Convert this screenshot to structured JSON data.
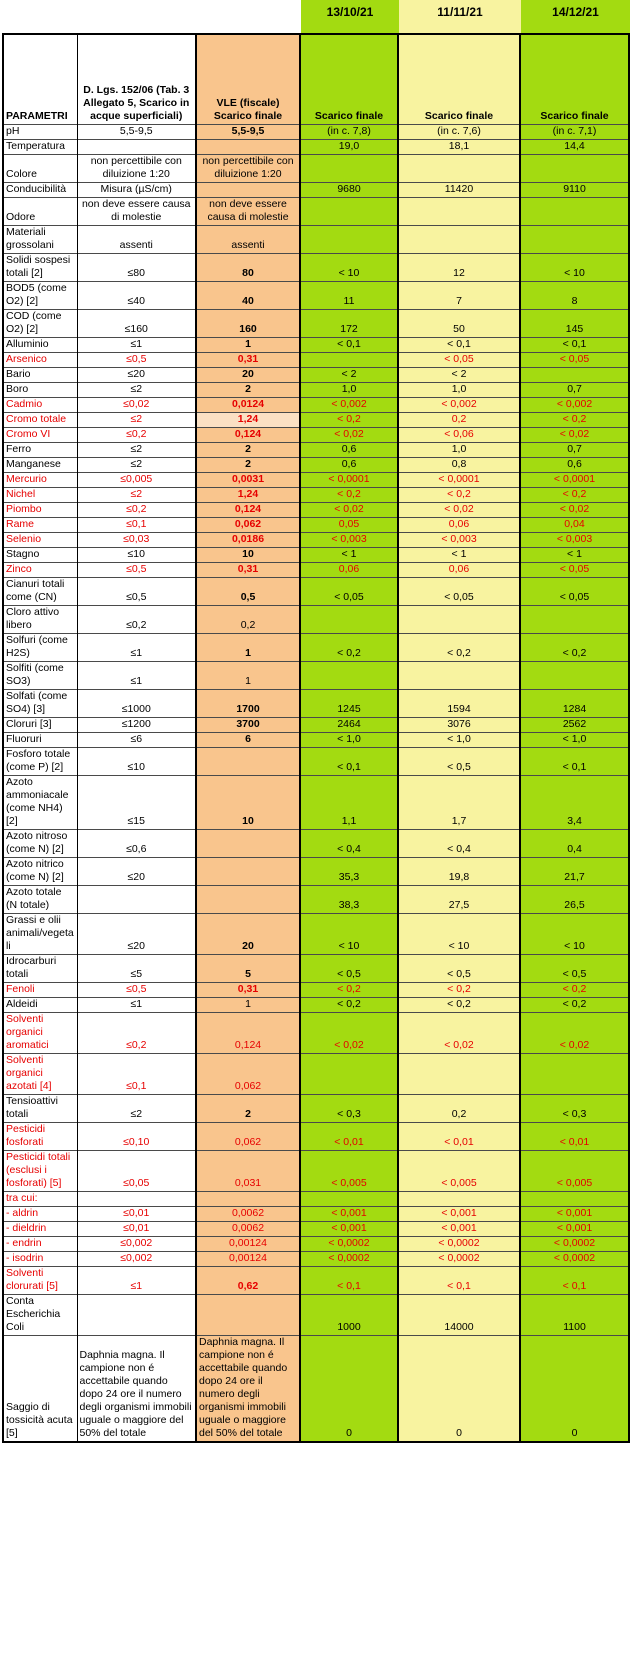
{
  "dates": [
    "13/10/21",
    "11/11/21",
    "14/12/21"
  ],
  "header": {
    "col_param": "PARAMETRI",
    "col_limit": "D. Lgs. 152/06 (Tab. 3 Allegato 5, Scarico in acque superficiali)",
    "col_vle": "VLE (fiscale) Scarico finale",
    "col_sample": "Scarico finale"
  },
  "colors": {
    "green": "#a3db11",
    "yellow": "#f8f3a0",
    "orange": "#f9c58d",
    "orange_light": "#fbe0c3",
    "red": "#e60000"
  },
  "rows": [
    {
      "name": "pH",
      "limit": "5,5-9,5",
      "vle": "5,5-9,5",
      "bold": true,
      "red": false,
      "values": [
        "(in c. 7,8)",
        "(in c. 7,6)",
        "(in c. 7,1)"
      ]
    },
    {
      "name": "Temperatura",
      "limit": "",
      "vle": "",
      "bold": false,
      "red": false,
      "values": [
        "19,0",
        "18,1",
        "14,4"
      ]
    },
    {
      "name": "Colore",
      "limit": "non percettibile con diluizione 1:20",
      "vle": "non percettibile con diluizione 1:20",
      "bold": false,
      "red": false,
      "values": [
        "",
        "",
        ""
      ]
    },
    {
      "name": "Conducibilità",
      "limit": "Misura (µS/cm)",
      "vle": "",
      "bold": false,
      "red": false,
      "values": [
        "9680",
        "11420",
        "9110"
      ]
    },
    {
      "name": "Odore",
      "limit": "non deve essere causa di molestie",
      "vle": "non deve essere causa di molestie",
      "bold": false,
      "red": false,
      "values": [
        "",
        "",
        ""
      ]
    },
    {
      "name": "Materiali grossolani",
      "limit": "assenti",
      "vle": "assenti",
      "bold": false,
      "red": false,
      "values": [
        "",
        "",
        ""
      ]
    },
    {
      "name": "Solidi sospesi totali [2]",
      "limit": "≤80",
      "vle": "80",
      "bold": true,
      "red": false,
      "values": [
        "< 10",
        "12",
        "< 10"
      ]
    },
    {
      "name": "BOD5 (come O2) [2]",
      "limit": "≤40",
      "vle": "40",
      "bold": true,
      "red": false,
      "values": [
        "11",
        "7",
        "8"
      ]
    },
    {
      "name": "COD (come O2) [2]",
      "limit": "≤160",
      "vle": "160",
      "bold": true,
      "red": false,
      "values": [
        "172",
        "50",
        "145"
      ]
    },
    {
      "name": "Alluminio",
      "limit": "≤1",
      "vle": "1",
      "bold": true,
      "red": false,
      "values": [
        "< 0,1",
        "< 0,1",
        "< 0,1"
      ]
    },
    {
      "name": "Arsenico",
      "limit": "≤0,5",
      "vle": "0,31",
      "bold": true,
      "red": true,
      "values": [
        "",
        "< 0,05",
        "< 0,05"
      ]
    },
    {
      "name": "Bario",
      "limit": "≤20",
      "vle": "20",
      "bold": true,
      "red": false,
      "values": [
        "< 2",
        "< 2",
        ""
      ]
    },
    {
      "name": "Boro",
      "limit": "≤2",
      "vle": "2",
      "bold": true,
      "red": false,
      "values": [
        "1,0",
        "1,0",
        "0,7"
      ]
    },
    {
      "name": "Cadmio",
      "limit": "≤0,02",
      "vle": "0,0124",
      "bold": true,
      "red": true,
      "values": [
        "< 0,002",
        "< 0,002",
        "< 0,002"
      ]
    },
    {
      "name": "Cromo totale",
      "limit": "≤2",
      "vle": "1,24",
      "bold": true,
      "light": true,
      "red": true,
      "values": [
        "< 0,2",
        "0,2",
        "< 0,2"
      ]
    },
    {
      "name": "Cromo VI",
      "limit": "≤0,2",
      "vle": "0,124",
      "bold": true,
      "red": true,
      "values": [
        "< 0,02",
        "< 0,06",
        "< 0,02"
      ]
    },
    {
      "name": "Ferro",
      "limit": "≤2",
      "vle": "2",
      "bold": true,
      "red": false,
      "values": [
        "0,6",
        "1,0",
        "0,7"
      ]
    },
    {
      "name": "Manganese",
      "limit": "≤2",
      "vle": "2",
      "bold": true,
      "red": false,
      "values": [
        "0,6",
        "0,8",
        "0,6"
      ]
    },
    {
      "name": "Mercurio",
      "limit": "≤0,005",
      "vle": "0,0031",
      "bold": true,
      "red": true,
      "values": [
        "< 0,0001",
        "< 0,0001",
        "< 0,0001"
      ]
    },
    {
      "name": "Nichel",
      "limit": "≤2",
      "vle": "1,24",
      "bold": true,
      "red": true,
      "values": [
        "< 0,2",
        "< 0,2",
        "< 0,2"
      ]
    },
    {
      "name": "Piombo",
      "limit": "≤0,2",
      "vle": "0,124",
      "bold": true,
      "red": true,
      "values": [
        "< 0,02",
        "< 0,02",
        "< 0,02"
      ]
    },
    {
      "name": "Rame",
      "limit": "≤0,1",
      "vle": "0,062",
      "bold": true,
      "red": true,
      "values": [
        "0,05",
        "0,06",
        "0,04"
      ]
    },
    {
      "name": "Selenio",
      "limit": "≤0,03",
      "vle": "0,0186",
      "bold": true,
      "red": true,
      "values": [
        "< 0,003",
        "< 0,003",
        "< 0,003"
      ]
    },
    {
      "name": "Stagno",
      "limit": "≤10",
      "vle": "10",
      "bold": true,
      "red": false,
      "values": [
        "< 1",
        "< 1",
        "< 1"
      ]
    },
    {
      "name": "Zinco",
      "limit": "≤0,5",
      "vle": "0,31",
      "bold": true,
      "red": true,
      "values": [
        "0,06",
        "0,06",
        "< 0,05"
      ]
    },
    {
      "name": "Cianuri totali come (CN)",
      "limit": "≤0,5",
      "vle": "0,5",
      "bold": true,
      "red": false,
      "values": [
        "< 0,05",
        "< 0,05",
        "< 0,05"
      ]
    },
    {
      "name": "Cloro attivo libero",
      "limit": "≤0,2",
      "vle": "0,2",
      "bold": false,
      "red": false,
      "values": [
        "",
        "",
        ""
      ]
    },
    {
      "name": "Solfuri (come H2S)",
      "limit": "≤1",
      "vle": "1",
      "bold": true,
      "red": false,
      "values": [
        "< 0,2",
        "< 0,2",
        "< 0,2"
      ]
    },
    {
      "name": "Solfiti (come SO3)",
      "limit": "≤1",
      "vle": "1",
      "bold": false,
      "red": false,
      "values": [
        "",
        "",
        ""
      ]
    },
    {
      "name": "Solfati (come SO4) [3]",
      "limit": "≤1000",
      "vle": "1700",
      "bold": true,
      "red": false,
      "values": [
        "1245",
        "1594",
        "1284"
      ]
    },
    {
      "name": "Cloruri [3]",
      "limit": "≤1200",
      "vle": "3700",
      "bold": true,
      "red": false,
      "values": [
        "2464",
        "3076",
        "2562"
      ]
    },
    {
      "name": "Fluoruri",
      "limit": "≤6",
      "vle": "6",
      "bold": true,
      "red": false,
      "values": [
        "< 1,0",
        "< 1,0",
        "< 1,0"
      ]
    },
    {
      "name": "Fosforo totale (come P) [2]",
      "limit": "≤10",
      "vle": "",
      "bold": false,
      "red": false,
      "values": [
        "< 0,1",
        "< 0,5",
        "< 0,1"
      ]
    },
    {
      "name": "Azoto ammoniacale (come NH4) [2]",
      "limit": "≤15",
      "vle": "10",
      "bold": true,
      "red": false,
      "values": [
        "1,1",
        "1,7",
        "3,4"
      ]
    },
    {
      "name": "Azoto nitroso (come N) [2]",
      "limit": "≤0,6",
      "vle": "",
      "bold": false,
      "red": false,
      "values": [
        "< 0,4",
        "< 0,4",
        "0,4"
      ]
    },
    {
      "name": "Azoto nitrico (come N) [2]",
      "limit": "≤20",
      "vle": "",
      "bold": false,
      "red": false,
      "values": [
        "35,3",
        "19,8",
        "21,7"
      ]
    },
    {
      "name": "Azoto totale (N totale)",
      "limit": "",
      "vle": "",
      "bold": false,
      "red": false,
      "values": [
        "38,3",
        "27,5",
        "26,5"
      ]
    },
    {
      "name": "Grassi e olii animali/vegetali",
      "limit": "≤20",
      "vle": "20",
      "bold": true,
      "red": false,
      "values": [
        "< 10",
        "< 10",
        "< 10"
      ]
    },
    {
      "name": "Idrocarburi totali",
      "limit": "≤5",
      "vle": "5",
      "bold": true,
      "red": false,
      "values": [
        "< 0,5",
        "< 0,5",
        "< 0,5"
      ]
    },
    {
      "name": "Fenoli",
      "limit": "≤0,5",
      "vle": "0,31",
      "bold": true,
      "red": true,
      "values": [
        "< 0,2",
        "< 0,2",
        "< 0,2"
      ]
    },
    {
      "name": "Aldeidi",
      "limit": "≤1",
      "vle": "1",
      "bold": false,
      "red": false,
      "values": [
        "< 0,2",
        "< 0,2",
        "< 0,2"
      ]
    },
    {
      "name": "Solventi organici aromatici",
      "limit": "≤0,2",
      "vle": "0,124",
      "bold": false,
      "red": true,
      "values": [
        "< 0,02",
        "< 0,02",
        "< 0,02"
      ]
    },
    {
      "name": "Solventi organici azotati [4]",
      "limit": "≤0,1",
      "vle": "0,062",
      "bold": false,
      "red": true,
      "values": [
        "",
        "",
        ""
      ]
    },
    {
      "name": "Tensioattivi totali",
      "limit": "≤2",
      "vle": "2",
      "bold": true,
      "red": false,
      "values": [
        "< 0,3",
        "0,2",
        "< 0,3"
      ]
    },
    {
      "name": "Pesticidi fosforati",
      "limit": "≤0,10",
      "vle": "0,062",
      "bold": false,
      "red": true,
      "values": [
        "< 0,01",
        "< 0,01",
        "< 0,01"
      ]
    },
    {
      "name": "Pesticidi totali (esclusi i fosforati) [5]",
      "limit": "≤0,05",
      "vle": "0,031",
      "bold": false,
      "red": true,
      "values": [
        "< 0,005",
        "< 0,005",
        "< 0,005"
      ]
    },
    {
      "name": "tra cui:",
      "limit": "",
      "vle": "",
      "bold": false,
      "red": true,
      "values": [
        "",
        "",
        ""
      ]
    },
    {
      "name": "- aldrin",
      "limit": "≤0,01",
      "vle": "0,0062",
      "bold": false,
      "red": true,
      "values": [
        "< 0,001",
        "< 0,001",
        "< 0,001"
      ]
    },
    {
      "name": "- dieldrin",
      "limit": "≤0,01",
      "vle": "0,0062",
      "bold": false,
      "red": true,
      "values": [
        "< 0,001",
        "< 0,001",
        "< 0,001"
      ]
    },
    {
      "name": "- endrin",
      "limit": "≤0,002",
      "vle": "0,00124",
      "bold": false,
      "red": true,
      "values": [
        "< 0,0002",
        "< 0,0002",
        "< 0,0002"
      ]
    },
    {
      "name": "- isodrin",
      "limit": "≤0,002",
      "vle": "0,00124",
      "bold": false,
      "red": true,
      "values": [
        "< 0,0002",
        "< 0,0002",
        "< 0,0002"
      ]
    },
    {
      "name": "Solventi clorurati [5]",
      "limit": "≤1",
      "vle": "0,62",
      "bold": true,
      "red": true,
      "values": [
        "< 0,1",
        "< 0,1",
        "< 0,1"
      ]
    },
    {
      "name": "Conta Escherichia Coli",
      "limit": "",
      "vle": "",
      "bold": false,
      "red": false,
      "values": [
        "1000",
        "14000",
        "1100"
      ]
    },
    {
      "name": "Saggio di tossicità acuta [5]",
      "limit": "Daphnia magna. Il campione non é accettabile quando dopo 24 ore il numero degli organismi immobili uguale o maggiore del 50% del totale",
      "vle": "Daphnia magna. Il campione non é accettabile quando dopo 24 ore il numero degli organismi immobili uguale o maggiore del 50% del totale",
      "bold": false,
      "red": false,
      "values": [
        "0",
        "0",
        "0"
      ]
    }
  ]
}
